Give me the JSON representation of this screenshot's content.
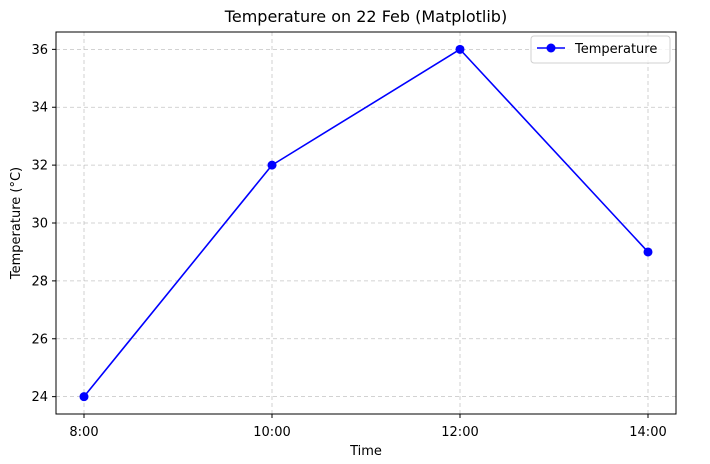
{
  "chart_data": {
    "type": "line",
    "title": "Temperature on 22 Feb (Matplotlib)",
    "xlabel": "Time",
    "ylabel": "Temperature (°C)",
    "categories": [
      "8:00",
      "10:00",
      "12:00",
      "14:00"
    ],
    "series": [
      {
        "name": "Temperature",
        "values": [
          24,
          32,
          36,
          29
        ],
        "color": "#0000ff"
      }
    ],
    "ylim": [
      23.4,
      36.6
    ],
    "yticks": [
      "24",
      "26",
      "28",
      "30",
      "32",
      "34",
      "36"
    ],
    "grid": true,
    "legend": "upper right",
    "marker": "circle"
  }
}
